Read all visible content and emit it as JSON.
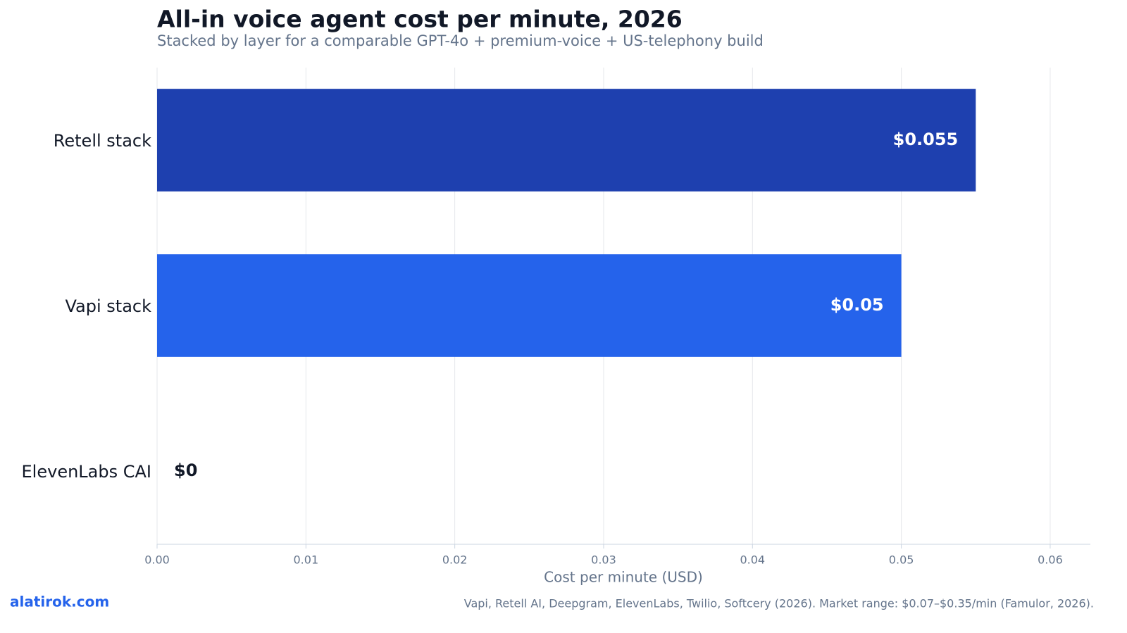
{
  "chart_data": {
    "type": "hbar",
    "title": "All-in voice agent cost per minute, 2026",
    "subtitle": "Stacked by layer for a comparable GPT-4o + premium-voice + US-telephony build",
    "categories": [
      "Retell stack",
      "Vapi stack",
      "ElevenLabs CAI"
    ],
    "values": [
      0.055,
      0.05,
      0
    ],
    "value_labels": [
      "$0.055",
      "$0.05",
      "$0"
    ],
    "colors": [
      "#1e40af",
      "#2563eb",
      "#3b82f6"
    ],
    "xlabel": "Cost per minute (USD)",
    "xlim": [
      0,
      0.0627
    ],
    "xticks": [
      {
        "value": 0,
        "label": "0.00"
      },
      {
        "value": 0.01,
        "label": "0.01"
      },
      {
        "value": 0.02,
        "label": "0.02"
      },
      {
        "value": 0.03,
        "label": "0.03"
      },
      {
        "value": 0.04,
        "label": "0.04"
      },
      {
        "value": 0.05,
        "label": "0.05"
      },
      {
        "value": 0.06,
        "label": "0.06"
      }
    ],
    "grid": true
  },
  "footer": {
    "brand": "alatirok.com",
    "source": "Vapi, Retell AI, Deepgram, ElevenLabs, Twilio, Softcery (2026). Market range: $0.07–$0.35/min (Famulor, 2026)."
  }
}
